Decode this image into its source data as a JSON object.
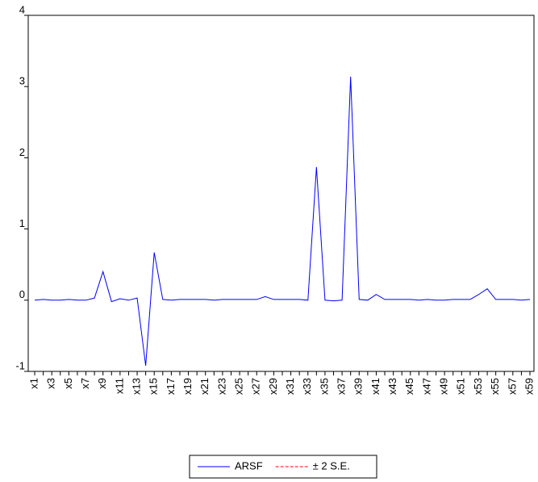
{
  "chart_data": {
    "type": "line",
    "categories": [
      "x1",
      null,
      "x3",
      null,
      "x5",
      null,
      "x7",
      null,
      "x9",
      null,
      "x11",
      null,
      "x13",
      null,
      "x15",
      null,
      "x17",
      null,
      "x19",
      null,
      "x21",
      null,
      "x23",
      null,
      "x25",
      null,
      "x27",
      null,
      "x29",
      null,
      "x31",
      null,
      "x33",
      null,
      "x35",
      null,
      "x37",
      null,
      "x39",
      null,
      "x41",
      null,
      "x43",
      null,
      "x45",
      null,
      "x47",
      null,
      "x49",
      null,
      "x51",
      null,
      "x53",
      null,
      "x55",
      null,
      "x57",
      null,
      "x59"
    ],
    "series": [
      {
        "name": "ARSF",
        "color": "#0000ff",
        "values": [
          0,
          0.01,
          0,
          0,
          0.01,
          0,
          0,
          0.03,
          0.4,
          -0.02,
          0.02,
          0,
          0.03,
          -0.92,
          0.67,
          0.01,
          0,
          0.01,
          0.01,
          0.01,
          0.01,
          0,
          0.01,
          0.01,
          0.01,
          0.01,
          0.01,
          0.05,
          0.01,
          0.01,
          0.01,
          0.01,
          0,
          1.87,
          0,
          -0.01,
          0,
          3.14,
          0.01,
          0,
          0.08,
          0.01,
          0.01,
          0.01,
          0.01,
          0,
          0.01,
          0,
          0,
          0.01,
          0.01,
          0.01,
          0.08,
          0.16,
          0.01,
          0.01,
          0.01,
          0,
          0.01
        ]
      },
      {
        "name": "± 2 S.E.",
        "color": "#ff0000",
        "dashed": true,
        "values": [
          null,
          null,
          null,
          null,
          null,
          null,
          null,
          null,
          null,
          null,
          null,
          null,
          null,
          null,
          null,
          null,
          null,
          null,
          null,
          null,
          null,
          null,
          null,
          null,
          null,
          null,
          null,
          null,
          null,
          null,
          null,
          null,
          null,
          null,
          null,
          null,
          null,
          null,
          null,
          null,
          null,
          null,
          null,
          null,
          null,
          null,
          null,
          null,
          null,
          null,
          null,
          null,
          null,
          null,
          null,
          null,
          null,
          null,
          null
        ]
      }
    ],
    "ylim": [
      -1,
      4
    ],
    "yticks": [
      -1,
      0,
      1,
      2,
      3,
      4
    ],
    "grid": false,
    "legend": "bottom"
  }
}
